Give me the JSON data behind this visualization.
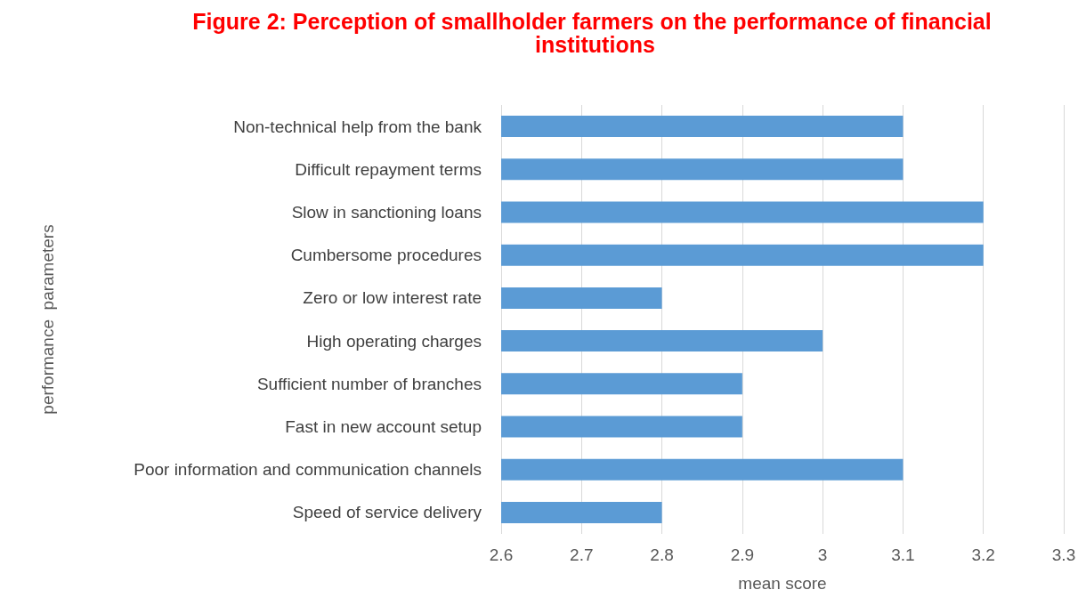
{
  "chart_data": {
    "type": "bar",
    "orientation": "horizontal",
    "title": "Figure 2: Perception of smallholder farmers on the performance of financial institutions",
    "xlabel": "mean score",
    "ylabel": "performance  parameters",
    "categories": [
      "Non-technical help from the bank",
      "Difficult repayment terms",
      "Slow in sanctioning loans",
      "Cumbersome procedures",
      "Zero or low interest rate",
      "High operating charges",
      "Sufficient number of branches",
      "Fast in new account setup",
      "Poor information and communication channels",
      "Speed of service delivery"
    ],
    "values": [
      3.1,
      3.1,
      3.2,
      3.2,
      2.8,
      3.0,
      2.9,
      2.9,
      3.1,
      2.8
    ],
    "color": "#5b9bd5",
    "xlim": [
      2.6,
      3.3
    ],
    "xticks": [
      2.6,
      2.7,
      2.8,
      2.9,
      3,
      3.1,
      3.2,
      3.3
    ],
    "grid": "x"
  }
}
